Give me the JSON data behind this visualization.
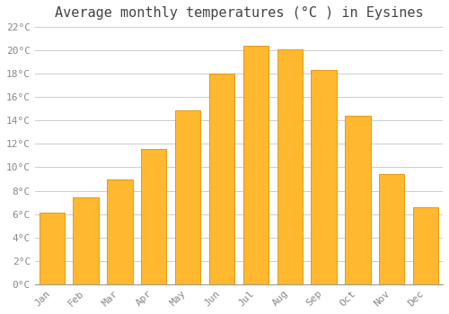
{
  "title": "Average monthly temperatures (°C ) in Eysines",
  "months": [
    "Jan",
    "Feb",
    "Mar",
    "Apr",
    "May",
    "Jun",
    "Jul",
    "Aug",
    "Sep",
    "Oct",
    "Nov",
    "Dec"
  ],
  "values": [
    6.1,
    7.4,
    9.0,
    11.6,
    14.9,
    18.0,
    20.4,
    20.1,
    18.3,
    14.4,
    9.4,
    6.6
  ],
  "bar_color": "#FFB830",
  "bar_edge_color": "#E09000",
  "background_color": "#FFFFFF",
  "grid_color": "#CCCCCC",
  "text_color": "#888888",
  "title_color": "#444444",
  "ylim": [
    0,
    22
  ],
  "ytick_step": 2,
  "title_fontsize": 11,
  "tick_fontsize": 8,
  "font_family": "monospace"
}
